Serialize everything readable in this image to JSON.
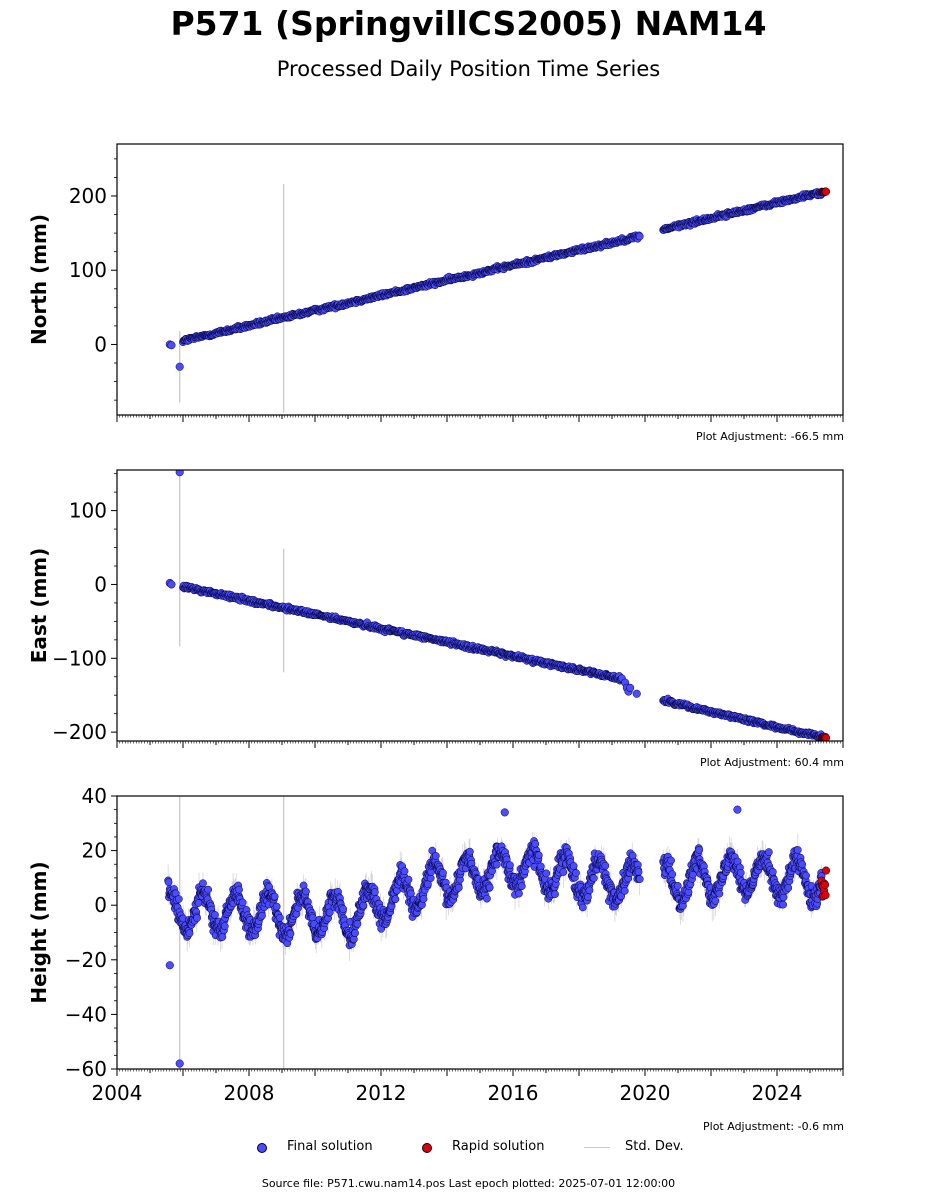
{
  "title": "P571 (SpringvillCS2005) NAM14",
  "subtitle": "Processed Daily Position Time Series",
  "footer": "Source file: P571.cwu.nam14.pos  Last epoch plotted: 2025-07-01 12:00:00",
  "legend": {
    "final": "Final solution",
    "rapid": "Rapid solution",
    "std": "Std. Dev."
  },
  "colors": {
    "final": "#4b4bff",
    "rapid": "#e00000",
    "std": "#cccccc",
    "marker_edge": "#000033"
  },
  "chart_data": [
    {
      "type": "scatter",
      "panel": "north",
      "ylabel": "North (mm)",
      "adjustment": "Plot Adjustment: -66.5 mm",
      "xlim": [
        2004,
        2026
      ],
      "ylim": [
        -95,
        270
      ],
      "yticks": [
        0,
        100,
        200
      ],
      "gap": [
        2019.85,
        2020.55
      ],
      "final_segments": [
        {
          "start": 2006.0,
          "end": 2019.85,
          "y0": 5,
          "y1": 146,
          "noise": 2
        },
        {
          "start": 2020.55,
          "end": 2025.35,
          "y0": 155,
          "y1": 205,
          "noise": 2
        }
      ],
      "final_points": [
        {
          "x": 2005.6,
          "y": 0
        },
        {
          "x": 2005.65,
          "y": -1
        },
        {
          "x": 2005.9,
          "y": -30
        }
      ],
      "rapid": {
        "start": 2025.35,
        "end": 2025.5,
        "y": 205,
        "spread": 1
      },
      "std_spikes": [
        {
          "x": 2005.9,
          "low": -78,
          "high": 18
        },
        {
          "x": 2009.05,
          "low": -92,
          "high": 216
        }
      ],
      "std_half": 3
    },
    {
      "type": "scatter",
      "panel": "east",
      "ylabel": "East (mm)",
      "adjustment": "Plot Adjustment: 60.4 mm",
      "xlim": [
        2004,
        2026
      ],
      "ylim": [
        -212,
        155
      ],
      "yticks": [
        -200,
        -100,
        0,
        100
      ],
      "gap": [
        2019.85,
        2020.55
      ],
      "final_segments": [
        {
          "start": 2006.0,
          "end": 2019.3,
          "y0": -3,
          "y1": -128,
          "noise": 2
        },
        {
          "start": 2020.55,
          "end": 2025.35,
          "y0": -157,
          "y1": -207,
          "noise": 2
        }
      ],
      "final_points": [
        {
          "x": 2005.6,
          "y": 2
        },
        {
          "x": 2005.65,
          "y": 0
        },
        {
          "x": 2005.9,
          "y": 152
        },
        {
          "x": 2019.4,
          "y": -133
        },
        {
          "x": 2019.45,
          "y": -140
        },
        {
          "x": 2019.5,
          "y": -145
        },
        {
          "x": 2019.55,
          "y": -140
        },
        {
          "x": 2019.75,
          "y": -148
        }
      ],
      "rapid": {
        "start": 2025.35,
        "end": 2025.5,
        "y": -207,
        "spread": 1
      },
      "std_spikes": [
        {
          "x": 2005.9,
          "low": -84,
          "high": 153
        },
        {
          "x": 2009.05,
          "low": -119,
          "high": 48
        }
      ],
      "std_half": 3
    },
    {
      "type": "scatter",
      "panel": "height",
      "ylabel": "Height (mm)",
      "adjustment": "Plot Adjustment: -0.6 mm",
      "xlim": [
        2004,
        2026
      ],
      "ylim": [
        -60,
        40
      ],
      "yticks": [
        -60,
        -40,
        -20,
        0,
        20,
        40
      ],
      "xticks": [
        2004,
        2008,
        2012,
        2016,
        2020,
        2024
      ],
      "gap": [
        2019.85,
        2020.55
      ],
      "trend_knots": [
        [
          2005.5,
          -2
        ],
        [
          2011,
          -4
        ],
        [
          2013.5,
          8
        ],
        [
          2016,
          14
        ],
        [
          2019.5,
          8
        ],
        [
          2020.6,
          8
        ],
        [
          2023,
          12
        ],
        [
          2025.5,
          8
        ]
      ],
      "seasonal_amplitude": 7,
      "noise": 6,
      "final_segments": [
        {
          "start": 2005.55,
          "end": 2019.85
        },
        {
          "start": 2020.55,
          "end": 2025.35
        }
      ],
      "final_points": [
        {
          "x": 2005.6,
          "y": -22
        },
        {
          "x": 2005.9,
          "y": -58
        },
        {
          "x": 2015.75,
          "y": 34
        },
        {
          "x": 2022.8,
          "y": 35
        }
      ],
      "rapid": {
        "start": 2025.35,
        "end": 2025.5,
        "y": 8,
        "spread": 5
      },
      "std_spikes": [
        {
          "x": 2005.9,
          "low": -60,
          "high": 40
        },
        {
          "x": 2009.05,
          "low": -60,
          "high": 40
        }
      ],
      "std_half": 4
    }
  ]
}
